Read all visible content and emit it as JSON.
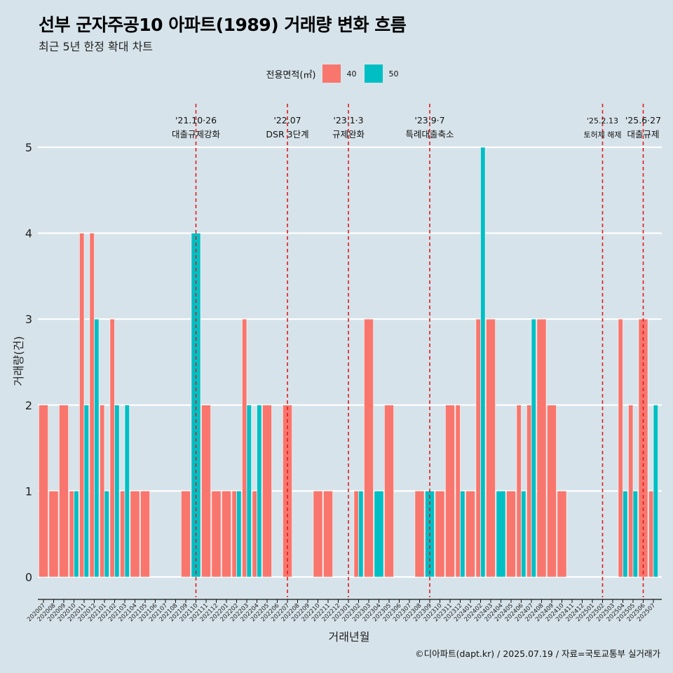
{
  "header": {
    "title": "선부 군자주공10 아파트(1989) 거래량 변화 흐름",
    "subtitle": "최근 5년 한정 확대 차트"
  },
  "legend": {
    "title": "전용면적(㎡)",
    "items": [
      {
        "label": "40",
        "color": "#f8766d"
      },
      {
        "label": "50",
        "color": "#00bfc4"
      }
    ]
  },
  "caption": "©디아파트(dapt.kr) / 2025.07.19 / 자료=국토교통부 실거래가",
  "chart_data": {
    "type": "bar",
    "title": "선부 군자주공10 아파트(1989) 거래량 변화 흐름",
    "xlabel": "거래년월",
    "ylabel": "거래량(건)",
    "ylim": [
      0,
      5
    ],
    "yticks": [
      0,
      1,
      2,
      3,
      4,
      5
    ],
    "categories": [
      "202007",
      "202008",
      "202009",
      "202010",
      "202011",
      "202012",
      "202101",
      "202102",
      "202103",
      "202104",
      "202105",
      "202106",
      "202107",
      "202108",
      "202109",
      "202110",
      "202111",
      "202112",
      "202201",
      "202202",
      "202203",
      "202204",
      "202205",
      "202206",
      "202207",
      "202208",
      "202209",
      "202210",
      "202211",
      "202212",
      "202301",
      "202302",
      "202303",
      "202304",
      "202305",
      "202306",
      "202307",
      "202308",
      "202309",
      "202310",
      "202311",
      "202312",
      "202401",
      "202402",
      "202403",
      "202404",
      "202405",
      "202406",
      "202407",
      "202408",
      "202409",
      "202410",
      "202411",
      "202412",
      "202501",
      "202502",
      "202503",
      "202504",
      "202505",
      "202506",
      "202507"
    ],
    "series": [
      {
        "name": "40",
        "color": "#f8766d",
        "values": [
          2,
          1,
          2,
          1,
          4,
          4,
          2,
          3,
          1,
          1,
          1,
          0,
          0,
          0,
          1,
          0,
          2,
          1,
          1,
          1,
          3,
          1,
          2,
          0,
          2,
          0,
          0,
          1,
          1,
          0,
          0,
          1,
          3,
          0,
          2,
          0,
          0,
          1,
          0,
          1,
          2,
          2,
          1,
          3,
          3,
          0,
          1,
          2,
          2,
          3,
          2,
          1,
          0,
          0,
          0,
          0,
          0,
          3,
          2,
          3,
          1
        ]
      },
      {
        "name": "50",
        "color": "#00bfc4",
        "values": [
          0,
          0,
          0,
          1,
          2,
          3,
          1,
          2,
          2,
          0,
          0,
          0,
          0,
          0,
          0,
          4,
          0,
          0,
          0,
          1,
          2,
          2,
          0,
          0,
          0,
          0,
          0,
          0,
          0,
          0,
          0,
          1,
          0,
          1,
          0,
          0,
          0,
          0,
          1,
          0,
          0,
          1,
          0,
          5,
          0,
          1,
          0,
          1,
          3,
          0,
          0,
          0,
          0,
          0,
          0,
          0,
          0,
          1,
          1,
          0,
          2
        ]
      }
    ],
    "annotations": [
      {
        "month": "202110",
        "date": "'21.10·26",
        "label": "대출규제강화"
      },
      {
        "month": "202207",
        "date": "'22.07",
        "label": "DSR 3단계"
      },
      {
        "month": "202301",
        "date": "'23.1·3",
        "label": "규제완화"
      },
      {
        "month": "202309",
        "date": "'23.9·7",
        "label": "특례대출축소"
      },
      {
        "month": "202502",
        "date": "'25.2.13",
        "label": "토허제 해제"
      },
      {
        "month": "202506",
        "date": "'25.6·27",
        "label": "대출규제"
      }
    ]
  }
}
